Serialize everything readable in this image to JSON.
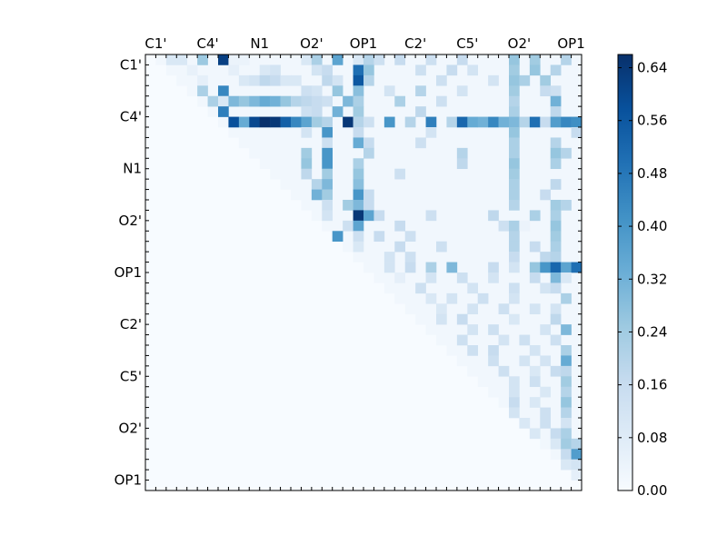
{
  "chart_data": [
    {
      "type": "heatmap",
      "n": 42,
      "x_tick_labels": [
        "C1'",
        "C4'",
        "N1",
        "O2'",
        "OP1",
        "C2'",
        "C5'",
        "O2'",
        "OP1"
      ],
      "y_tick_labels": [
        "C1'",
        "C4'",
        "N1",
        "O2'",
        "OP1",
        "C2'",
        "C5'",
        "O2'",
        "OP1"
      ],
      "tick_positions": [
        0.5,
        5.5,
        10.5,
        15.5,
        20.5,
        25.5,
        30.5,
        35.5,
        40.5
      ],
      "colormap": "Blues",
      "value_range": [
        0.0,
        0.66
      ],
      "upper_triangle_only": true,
      "background_value": 0.02,
      "rows": [
        [
          0,
          2,
          0.1
        ],
        [
          0,
          3,
          0.1
        ],
        [
          0,
          5,
          0.25
        ],
        [
          0,
          7,
          0.62
        ],
        [
          0,
          8,
          0.04
        ],
        [
          0,
          9,
          0.04
        ],
        [
          0,
          15,
          0.1
        ],
        [
          0,
          16,
          0.22
        ],
        [
          0,
          18,
          0.36
        ],
        [
          0,
          20,
          0.1
        ],
        [
          0,
          21,
          0.2
        ],
        [
          0,
          22,
          0.14
        ],
        [
          0,
          24,
          0.16
        ],
        [
          0,
          27,
          0.14
        ],
        [
          0,
          30,
          0.16
        ],
        [
          0,
          35,
          0.26
        ],
        [
          0,
          37,
          0.24
        ],
        [
          0,
          40,
          0.2
        ],
        [
          1,
          4,
          0.05
        ],
        [
          1,
          8,
          0.06
        ],
        [
          1,
          11,
          0.1
        ],
        [
          1,
          12,
          0.12
        ],
        [
          1,
          16,
          0.12
        ],
        [
          1,
          17,
          0.16
        ],
        [
          1,
          20,
          0.5
        ],
        [
          1,
          21,
          0.26
        ],
        [
          1,
          26,
          0.14
        ],
        [
          1,
          29,
          0.16
        ],
        [
          1,
          31,
          0.12
        ],
        [
          1,
          35,
          0.24
        ],
        [
          1,
          37,
          0.26
        ],
        [
          1,
          39,
          0.2
        ],
        [
          2,
          5,
          0.06
        ],
        [
          2,
          9,
          0.1
        ],
        [
          2,
          10,
          0.12
        ],
        [
          2,
          11,
          0.18
        ],
        [
          2,
          12,
          0.16
        ],
        [
          2,
          13,
          0.1
        ],
        [
          2,
          14,
          0.1
        ],
        [
          2,
          17,
          0.18
        ],
        [
          2,
          18,
          0.12
        ],
        [
          2,
          20,
          0.56
        ],
        [
          2,
          21,
          0.2
        ],
        [
          2,
          28,
          0.14
        ],
        [
          2,
          33,
          0.12
        ],
        [
          2,
          35,
          0.26
        ],
        [
          2,
          36,
          0.22
        ],
        [
          2,
          38,
          0.24
        ],
        [
          3,
          5,
          0.22
        ],
        [
          3,
          7,
          0.44
        ],
        [
          3,
          15,
          0.14
        ],
        [
          3,
          16,
          0.12
        ],
        [
          3,
          18,
          0.26
        ],
        [
          3,
          20,
          0.28
        ],
        [
          3,
          23,
          0.12
        ],
        [
          3,
          26,
          0.2
        ],
        [
          3,
          30,
          0.12
        ],
        [
          3,
          35,
          0.24
        ],
        [
          3,
          38,
          0.16
        ],
        [
          3,
          39,
          0.14
        ],
        [
          4,
          6,
          0.22
        ],
        [
          4,
          7,
          0.1
        ],
        [
          4,
          8,
          0.3
        ],
        [
          4,
          9,
          0.26
        ],
        [
          4,
          10,
          0.3
        ],
        [
          4,
          11,
          0.34
        ],
        [
          4,
          12,
          0.32
        ],
        [
          4,
          13,
          0.26
        ],
        [
          4,
          14,
          0.2
        ],
        [
          4,
          15,
          0.18
        ],
        [
          4,
          16,
          0.16
        ],
        [
          4,
          17,
          0.14
        ],
        [
          4,
          19,
          0.3
        ],
        [
          4,
          20,
          0.22
        ],
        [
          4,
          24,
          0.22
        ],
        [
          4,
          28,
          0.14
        ],
        [
          4,
          35,
          0.2
        ],
        [
          4,
          39,
          0.32
        ],
        [
          5,
          7,
          0.46
        ],
        [
          5,
          15,
          0.14
        ],
        [
          5,
          16,
          0.16
        ],
        [
          5,
          18,
          0.32
        ],
        [
          5,
          20,
          0.24
        ],
        [
          5,
          26,
          0.18
        ],
        [
          5,
          35,
          0.22
        ],
        [
          5,
          39,
          0.18
        ],
        [
          6,
          8,
          0.58
        ],
        [
          6,
          9,
          0.34
        ],
        [
          6,
          10,
          0.6
        ],
        [
          6,
          11,
          0.66
        ],
        [
          6,
          12,
          0.64
        ],
        [
          6,
          13,
          0.54
        ],
        [
          6,
          14,
          0.44
        ],
        [
          6,
          15,
          0.36
        ],
        [
          6,
          16,
          0.24
        ],
        [
          6,
          17,
          0.2
        ],
        [
          6,
          19,
          0.64
        ],
        [
          6,
          20,
          0.2
        ],
        [
          6,
          21,
          0.14
        ],
        [
          6,
          23,
          0.4
        ],
        [
          6,
          25,
          0.2
        ],
        [
          6,
          27,
          0.46
        ],
        [
          6,
          29,
          0.2
        ],
        [
          6,
          30,
          0.52
        ],
        [
          6,
          31,
          0.34
        ],
        [
          6,
          32,
          0.32
        ],
        [
          6,
          33,
          0.44
        ],
        [
          6,
          34,
          0.32
        ],
        [
          6,
          35,
          0.3
        ],
        [
          6,
          36,
          0.2
        ],
        [
          6,
          37,
          0.5
        ],
        [
          6,
          38,
          0.16
        ],
        [
          6,
          39,
          0.38
        ],
        [
          6,
          40,
          0.44
        ],
        [
          6,
          41,
          0.42
        ],
        [
          7,
          15,
          0.12
        ],
        [
          7,
          17,
          0.4
        ],
        [
          7,
          20,
          0.16
        ],
        [
          7,
          27,
          0.12
        ],
        [
          7,
          35,
          0.26
        ],
        [
          7,
          41,
          0.16
        ],
        [
          8,
          17,
          0.14
        ],
        [
          8,
          20,
          0.34
        ],
        [
          8,
          21,
          0.16
        ],
        [
          8,
          26,
          0.14
        ],
        [
          8,
          35,
          0.22
        ],
        [
          8,
          39,
          0.2
        ],
        [
          9,
          15,
          0.24
        ],
        [
          9,
          17,
          0.4
        ],
        [
          9,
          21,
          0.2
        ],
        [
          9,
          30,
          0.2
        ],
        [
          9,
          35,
          0.22
        ],
        [
          9,
          39,
          0.26
        ],
        [
          9,
          40,
          0.2
        ],
        [
          10,
          15,
          0.26
        ],
        [
          10,
          17,
          0.4
        ],
        [
          10,
          20,
          0.22
        ],
        [
          10,
          30,
          0.18
        ],
        [
          10,
          35,
          0.26
        ],
        [
          10,
          39,
          0.22
        ],
        [
          11,
          15,
          0.18
        ],
        [
          11,
          17,
          0.24
        ],
        [
          11,
          20,
          0.26
        ],
        [
          11,
          24,
          0.14
        ],
        [
          11,
          35,
          0.24
        ],
        [
          12,
          16,
          0.2
        ],
        [
          12,
          17,
          0.3
        ],
        [
          12,
          20,
          0.28
        ],
        [
          12,
          35,
          0.22
        ],
        [
          12,
          39,
          0.18
        ],
        [
          13,
          16,
          0.32
        ],
        [
          13,
          17,
          0.24
        ],
        [
          13,
          20,
          0.4
        ],
        [
          13,
          21,
          0.16
        ],
        [
          13,
          35,
          0.22
        ],
        [
          13,
          38,
          0.16
        ],
        [
          14,
          17,
          0.14
        ],
        [
          14,
          19,
          0.24
        ],
        [
          14,
          20,
          0.3
        ],
        [
          14,
          21,
          0.16
        ],
        [
          14,
          35,
          0.2
        ],
        [
          14,
          39,
          0.24
        ],
        [
          14,
          40,
          0.2
        ],
        [
          15,
          17,
          0.12
        ],
        [
          15,
          20,
          0.64
        ],
        [
          15,
          21,
          0.36
        ],
        [
          15,
          22,
          0.16
        ],
        [
          15,
          27,
          0.14
        ],
        [
          15,
          33,
          0.18
        ],
        [
          15,
          37,
          0.22
        ],
        [
          15,
          39,
          0.22
        ],
        [
          16,
          19,
          0.14
        ],
        [
          16,
          20,
          0.36
        ],
        [
          16,
          24,
          0.16
        ],
        [
          16,
          34,
          0.14
        ],
        [
          16,
          35,
          0.22
        ],
        [
          16,
          36,
          0.04
        ],
        [
          16,
          39,
          0.26
        ],
        [
          17,
          18,
          0.4
        ],
        [
          17,
          20,
          0.14
        ],
        [
          17,
          22,
          0.16
        ],
        [
          17,
          25,
          0.14
        ],
        [
          17,
          35,
          0.2
        ],
        [
          17,
          39,
          0.24
        ],
        [
          18,
          20,
          0.1
        ],
        [
          18,
          24,
          0.16
        ],
        [
          18,
          28,
          0.14
        ],
        [
          18,
          35,
          0.2
        ],
        [
          18,
          37,
          0.16
        ],
        [
          18,
          39,
          0.22
        ],
        [
          19,
          23,
          0.12
        ],
        [
          19,
          25,
          0.14
        ],
        [
          19,
          35,
          0.16
        ],
        [
          19,
          38,
          0.18
        ],
        [
          19,
          39,
          0.2
        ],
        [
          20,
          23,
          0.12
        ],
        [
          20,
          25,
          0.16
        ],
        [
          20,
          27,
          0.22
        ],
        [
          20,
          29,
          0.3
        ],
        [
          20,
          33,
          0.16
        ],
        [
          20,
          35,
          0.12
        ],
        [
          20,
          37,
          0.26
        ],
        [
          20,
          38,
          0.4
        ],
        [
          20,
          39,
          0.52
        ],
        [
          20,
          40,
          0.36
        ],
        [
          20,
          41,
          0.5
        ],
        [
          21,
          24,
          0.06
        ],
        [
          21,
          27,
          0.12
        ],
        [
          21,
          30,
          0.14
        ],
        [
          21,
          33,
          0.12
        ],
        [
          21,
          37,
          0.16
        ],
        [
          21,
          39,
          0.3
        ],
        [
          21,
          40,
          0.1
        ],
        [
          22,
          26,
          0.14
        ],
        [
          22,
          31,
          0.12
        ],
        [
          22,
          35,
          0.14
        ],
        [
          22,
          38,
          0.12
        ],
        [
          22,
          39,
          0.16
        ],
        [
          23,
          27,
          0.1
        ],
        [
          23,
          29,
          0.12
        ],
        [
          23,
          32,
          0.14
        ],
        [
          23,
          35,
          0.12
        ],
        [
          23,
          40,
          0.22
        ],
        [
          24,
          28,
          0.1
        ],
        [
          24,
          31,
          0.12
        ],
        [
          24,
          34,
          0.14
        ],
        [
          24,
          37,
          0.12
        ],
        [
          24,
          39,
          0.12
        ],
        [
          25,
          28,
          0.12
        ],
        [
          25,
          30,
          0.16
        ],
        [
          25,
          35,
          0.1
        ],
        [
          25,
          39,
          0.18
        ],
        [
          26,
          31,
          0.12
        ],
        [
          26,
          33,
          0.14
        ],
        [
          26,
          38,
          0.12
        ],
        [
          26,
          40,
          0.3
        ],
        [
          27,
          30,
          0.14
        ],
        [
          27,
          34,
          0.12
        ],
        [
          27,
          36,
          0.14
        ],
        [
          27,
          39,
          0.14
        ],
        [
          28,
          31,
          0.14
        ],
        [
          28,
          33,
          0.16
        ],
        [
          28,
          37,
          0.12
        ],
        [
          28,
          40,
          0.22
        ],
        [
          29,
          33,
          0.14
        ],
        [
          29,
          36,
          0.12
        ],
        [
          29,
          38,
          0.12
        ],
        [
          29,
          40,
          0.34
        ],
        [
          30,
          34,
          0.14
        ],
        [
          30,
          37,
          0.1
        ],
        [
          30,
          39,
          0.16
        ],
        [
          30,
          40,
          0.18
        ],
        [
          31,
          35,
          0.12
        ],
        [
          31,
          37,
          0.14
        ],
        [
          31,
          40,
          0.24
        ],
        [
          32,
          35,
          0.12
        ],
        [
          32,
          38,
          0.1
        ],
        [
          32,
          40,
          0.2
        ],
        [
          33,
          35,
          0.16
        ],
        [
          33,
          37,
          0.1
        ],
        [
          33,
          40,
          0.26
        ],
        [
          34,
          35,
          0.12
        ],
        [
          34,
          38,
          0.14
        ],
        [
          34,
          40,
          0.2
        ],
        [
          35,
          36,
          0.1
        ],
        [
          35,
          38,
          0.14
        ],
        [
          35,
          40,
          0.12
        ],
        [
          36,
          37,
          0.1
        ],
        [
          36,
          39,
          0.16
        ],
        [
          36,
          40,
          0.22
        ],
        [
          37,
          39,
          0.1
        ],
        [
          37,
          40,
          0.24
        ],
        [
          37,
          41,
          0.2
        ],
        [
          38,
          40,
          0.16
        ],
        [
          38,
          41,
          0.38
        ],
        [
          39,
          40,
          0.1
        ],
        [
          39,
          41,
          0.12
        ],
        [
          40,
          41,
          0.06
        ]
      ]
    },
    {
      "type": "colorbar",
      "colormap": "Blues",
      "range": [
        0.0,
        0.66
      ],
      "tick_values": [
        0.0,
        0.08,
        0.16,
        0.24,
        0.32,
        0.4,
        0.48,
        0.56,
        0.64
      ],
      "tick_labels": [
        "0.00",
        "0.08",
        "0.16",
        "0.24",
        "0.32",
        "0.40",
        "0.48",
        "0.56",
        "0.64"
      ]
    }
  ]
}
